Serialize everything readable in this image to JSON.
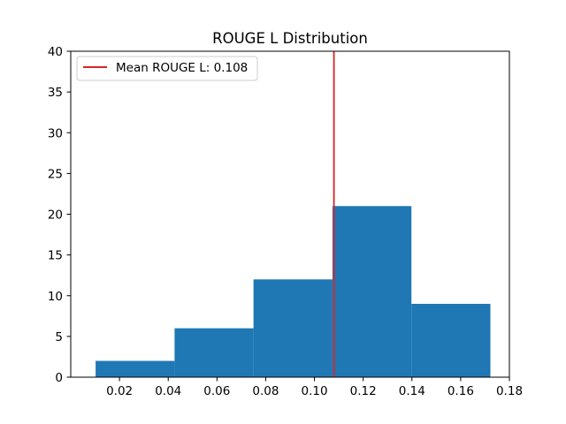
{
  "chart_data": {
    "type": "bar",
    "title": "ROUGE L Distribution",
    "xlabel": "",
    "ylabel": "",
    "xlim": [
      0.0,
      0.18
    ],
    "ylim": [
      0,
      40
    ],
    "x_ticks": [
      0.02,
      0.04,
      0.06,
      0.08,
      0.1,
      0.12,
      0.14,
      0.16,
      0.18
    ],
    "y_ticks": [
      0,
      5,
      10,
      15,
      20,
      25,
      30,
      35,
      40
    ],
    "bin_edges": [
      0.0102,
      0.0426,
      0.075,
      0.1074,
      0.1398,
      0.1722
    ],
    "values": [
      2,
      6,
      12,
      21,
      9
    ],
    "bar_color": "#1f77b4",
    "mean_line": {
      "x": 0.108,
      "y_range": [
        0,
        40
      ],
      "color": "#d62728",
      "label": "Mean ROUGE L: 0.108"
    },
    "legend_position": "upper-left",
    "grid": false
  }
}
